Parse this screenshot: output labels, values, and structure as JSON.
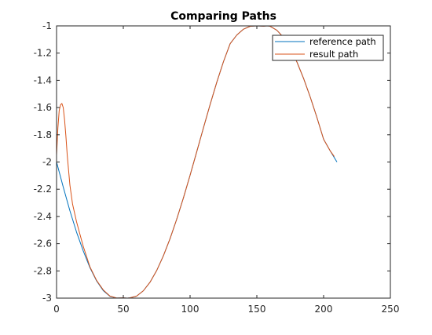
{
  "chart_data": {
    "type": "line",
    "title": "Comparing Paths",
    "xlabel": "",
    "ylabel": "",
    "xlim": [
      0,
      250
    ],
    "ylim": [
      -3,
      -1
    ],
    "xticks": [
      0,
      50,
      100,
      150,
      200,
      250
    ],
    "xtick_labels": [
      "0",
      "50",
      "100",
      "150",
      "200",
      "250"
    ],
    "yticks": [
      -3,
      -2.8,
      -2.6,
      -2.4,
      -2.2,
      -2,
      -1.8,
      -1.6,
      -1.4,
      -1.2,
      -1
    ],
    "ytick_labels": [
      "-3",
      "-2.8",
      "-2.6",
      "-2.4",
      "-2.2",
      "-2",
      "-1.8",
      "-1.6",
      "-1.4",
      "-1.2",
      "-1"
    ],
    "grid": false,
    "legend_position": "top-right",
    "series": [
      {
        "name": "reference path",
        "color": "#0072BD",
        "x": [
          0,
          5,
          10,
          15,
          20,
          25,
          30,
          35,
          40,
          45,
          50,
          53,
          55,
          60,
          65,
          70,
          75,
          80,
          85,
          90,
          95,
          100,
          105,
          110,
          115,
          120,
          125,
          130,
          135,
          140,
          145,
          150,
          155,
          158,
          160,
          165,
          170,
          175,
          180,
          185,
          190,
          195,
          200,
          205,
          210
        ],
        "y": [
          -2.0,
          -2.184,
          -2.358,
          -2.516,
          -2.653,
          -2.776,
          -2.874,
          -2.945,
          -2.987,
          -2.999,
          -2.998,
          -3.0,
          -2.998,
          -2.985,
          -2.946,
          -2.883,
          -2.797,
          -2.689,
          -2.563,
          -2.42,
          -2.264,
          -2.097,
          -1.924,
          -1.749,
          -1.578,
          -1.414,
          -1.263,
          -1.131,
          -1.067,
          -1.024,
          -1.003,
          -1.0,
          -1.002,
          -1.0,
          -1.003,
          -1.032,
          -1.085,
          -1.164,
          -1.265,
          -1.386,
          -1.523,
          -1.673,
          -1.833,
          -1.919,
          -2.0
        ]
      },
      {
        "name": "result path",
        "color": "#D95319",
        "x": [
          0,
          1,
          2,
          3,
          4,
          5,
          6,
          7,
          8,
          10,
          12,
          15,
          20,
          25,
          30,
          35,
          40,
          45,
          50,
          53,
          55,
          60,
          65,
          70,
          75,
          80,
          85,
          90,
          95,
          100,
          105,
          110,
          115,
          120,
          125,
          130,
          135,
          140,
          145,
          150,
          155,
          158,
          160,
          165,
          170,
          175,
          180,
          185,
          190,
          195,
          200,
          205,
          208
        ],
        "y": [
          -1.95,
          -1.75,
          -1.62,
          -1.58,
          -1.57,
          -1.6,
          -1.69,
          -1.81,
          -1.95,
          -2.17,
          -2.31,
          -2.44,
          -2.62,
          -2.77,
          -2.87,
          -2.94,
          -2.985,
          -2.999,
          -2.998,
          -3.0,
          -2.998,
          -2.985,
          -2.946,
          -2.883,
          -2.797,
          -2.689,
          -2.563,
          -2.42,
          -2.264,
          -2.097,
          -1.924,
          -1.749,
          -1.578,
          -1.414,
          -1.263,
          -1.131,
          -1.067,
          -1.024,
          -1.003,
          -1.0,
          -1.002,
          -1.0,
          -1.003,
          -1.032,
          -1.085,
          -1.164,
          -1.265,
          -1.386,
          -1.523,
          -1.673,
          -1.833,
          -1.919,
          -1.96
        ]
      }
    ]
  }
}
